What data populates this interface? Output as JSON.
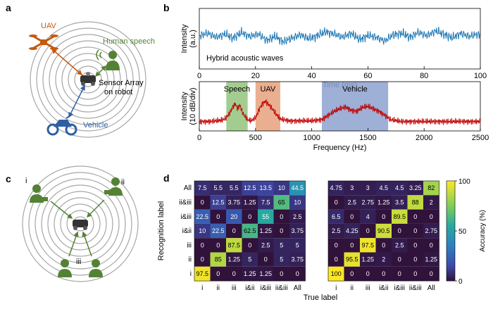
{
  "panels": {
    "a": "a",
    "b": "b",
    "c": "c",
    "d": "d"
  },
  "colors": {
    "uav": "#c55a11",
    "speech": "#548235",
    "vehicle": "#2e5fa3",
    "time_series": "#1f77b4",
    "spectrum": "#c00000",
    "ring": "#a6a6a6"
  },
  "panel_a": {
    "uav_label": "UAV",
    "speech_label": "Human speech",
    "sensor_label_line1": "Sensor Array",
    "sensor_label_line2": "on robot",
    "vehicle_label": "Vehicle",
    "icons": [
      "uav-icon",
      "human-speaking-icon",
      "robot-icon",
      "motorcycle-icon"
    ]
  },
  "panel_c": {
    "speakers": [
      "i",
      "ii",
      "iii"
    ],
    "icons": [
      "robot-icon",
      "human-speaking-icon"
    ]
  },
  "chart_data": [
    {
      "type": "line",
      "title": "",
      "annotation": "Hybrid acoustic waves",
      "xlabel": "Time (ms)",
      "ylabel_line1": "Intensity",
      "ylabel_line2": "(a.u.)",
      "xlim": [
        0,
        100
      ],
      "xticks": [
        "0",
        "20",
        "40",
        "60",
        "80",
        "100"
      ],
      "grid": false,
      "series": [
        {
          "name": "hybrid",
          "x": [
            0,
            3,
            6,
            9,
            12,
            15,
            18,
            21,
            24,
            27,
            30,
            33,
            36,
            39,
            42,
            45,
            48,
            51,
            54,
            57,
            60,
            63,
            66,
            69,
            72,
            75,
            78,
            81,
            84,
            87,
            90,
            93,
            96,
            99,
            100
          ],
          "values": [
            0.2,
            0.35,
            0.1,
            0.3,
            0.05,
            0.4,
            0.15,
            0.3,
            -0.1,
            0.15,
            -0.2,
            0.05,
            0.25,
            0.0,
            0.2,
            0.45,
            0.3,
            0.1,
            0.35,
            -0.05,
            0.2,
            0.1,
            -0.15,
            0.25,
            0.35,
            0.1,
            0.4,
            0.2,
            0.5,
            0.3,
            0.05,
            0.35,
            0.15,
            0.3,
            0.2
          ]
        }
      ]
    },
    {
      "type": "line",
      "title": "",
      "xlabel": "Frequency (Hz)",
      "ylabel_line1": "Intensity",
      "ylabel_line2": "(10 dB/div)",
      "xlim": [
        0,
        2500
      ],
      "xticks": [
        "0",
        "500",
        "1000",
        "1500",
        "2000",
        "2500"
      ],
      "grid": false,
      "bands": [
        {
          "name": "Speech",
          "from": 240,
          "to": 430,
          "color": "#93c47d"
        },
        {
          "name": "UAV",
          "from": 500,
          "to": 720,
          "color": "#e6a17c"
        },
        {
          "name": "Vehicle",
          "from": 1090,
          "to": 1680,
          "color": "#8ea2d0"
        }
      ],
      "series": [
        {
          "name": "spectrum",
          "x": [
            0,
            100,
            200,
            240,
            280,
            300,
            320,
            340,
            360,
            380,
            400,
            430,
            460,
            500,
            530,
            560,
            590,
            620,
            650,
            680,
            720,
            800,
            900,
            1000,
            1090,
            1150,
            1200,
            1250,
            1300,
            1350,
            1400,
            1450,
            1500,
            1550,
            1600,
            1650,
            1700,
            1800,
            2000,
            2200,
            2500
          ],
          "values": [
            0.6,
            0.6,
            0.8,
            1.2,
            2.2,
            3.0,
            3.4,
            2.6,
            3.2,
            2.2,
            1.5,
            0.9,
            0.7,
            1.2,
            2.4,
            3.4,
            3.8,
            3.2,
            2.6,
            1.8,
            1.0,
            0.7,
            0.7,
            0.7,
            0.9,
            1.6,
            2.2,
            2.6,
            2.9,
            2.4,
            2.2,
            2.8,
            3.0,
            2.6,
            2.2,
            1.6,
            0.9,
            0.6,
            0.6,
            0.6,
            0.6
          ]
        }
      ]
    },
    {
      "type": "heatmap",
      "title": "",
      "xlabel": "True label",
      "ylabel": "Recognition label",
      "x_categories": [
        "i",
        "ii",
        "iii",
        "i&ii",
        "i&iii",
        "ii&iii",
        "All"
      ],
      "y_categories": [
        "All",
        "ii&iii",
        "i&iii",
        "i&ii",
        "iii",
        "ii",
        "i"
      ],
      "colorbar_label": "Accuracy (%)",
      "colorbar_ticks": [
        "0",
        "50",
        "100"
      ],
      "range": [
        0,
        100
      ],
      "matrix_display": [
        [
          "7.5",
          "5.5",
          "5.5",
          "12.5",
          "13.5",
          "10",
          "44.5"
        ],
        [
          "0",
          "12.5",
          "3.75",
          "1.25",
          "7.5",
          "65",
          "10"
        ],
        [
          "22.5",
          "0",
          "20",
          "0",
          "55",
          "0",
          "2.5"
        ],
        [
          "10",
          "22.5",
          "0",
          "62.5",
          "1.25",
          "0",
          "3.75"
        ],
        [
          "0",
          "0",
          "87.5",
          "0",
          "2.5",
          "5",
          "5"
        ],
        [
          "0",
          "85",
          "1.25",
          "5",
          "0",
          "5",
          "3.75"
        ],
        [
          "97.5",
          "0",
          "0",
          "1.25",
          "1.25",
          "0",
          "0"
        ]
      ]
    },
    {
      "type": "heatmap",
      "title": "",
      "xlabel": "True label",
      "ylabel": "",
      "x_categories": [
        "i",
        "ii",
        "iii",
        "i&ii",
        "i&iii",
        "ii&iii",
        "All"
      ],
      "y_categories": [
        "All",
        "ii&iii",
        "i&iii",
        "i&ii",
        "iii",
        "ii",
        "i"
      ],
      "range": [
        0,
        100
      ],
      "matrix_display": [
        [
          "4.75",
          "3",
          "3",
          "4.5",
          "4.5",
          "3.25",
          "82"
        ],
        [
          "0",
          "2.5",
          "2.75",
          "1.25",
          "3.5",
          "88",
          "2"
        ],
        [
          "6.5",
          "0",
          "4",
          "0",
          "89.5",
          "0",
          "0"
        ],
        [
          "2.5",
          "4.25",
          "0",
          "90.5",
          "0",
          "0",
          "2.75"
        ],
        [
          "0",
          "0",
          "97.5",
          "0",
          "2.5",
          "0",
          "0"
        ],
        [
          "0",
          "95.5",
          "1.25",
          "2",
          "0",
          "0",
          "1.25"
        ],
        [
          "100",
          "0",
          "0",
          "0",
          "0",
          "0",
          "0"
        ]
      ]
    }
  ]
}
